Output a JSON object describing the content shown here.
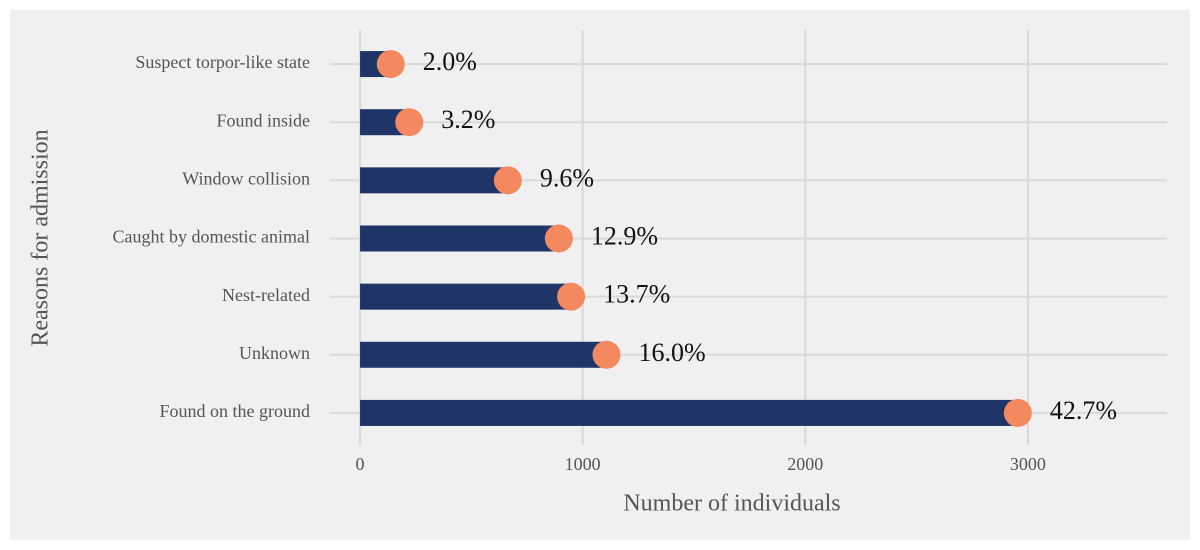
{
  "chart_data": {
    "type": "lollipop-bar",
    "categories": [
      "Suspect torpor-like state",
      "Found inside",
      "Window collision",
      "Caught by domestic animal",
      "Nest-related",
      "Unknown",
      "Found on the ground"
    ],
    "values": [
      138,
      221,
      664,
      893,
      948,
      1107,
      2955
    ],
    "percent": [
      2.0,
      3.2,
      9.6,
      12.9,
      13.7,
      16.0,
      42.7
    ],
    "percent_labels": [
      "2.0%",
      "3.2%",
      "9.6%",
      "12.9%",
      "13.7%",
      "16.0%",
      "42.7%"
    ],
    "bar_color": "#1f3567",
    "dot_color": "#f4895f",
    "xlabel": "Number of individuals",
    "ylabel": "Reasons for admission",
    "xlim": [
      -135,
      3625
    ],
    "xticks": [
      0,
      1000,
      2000,
      3000
    ],
    "grid": true
  }
}
